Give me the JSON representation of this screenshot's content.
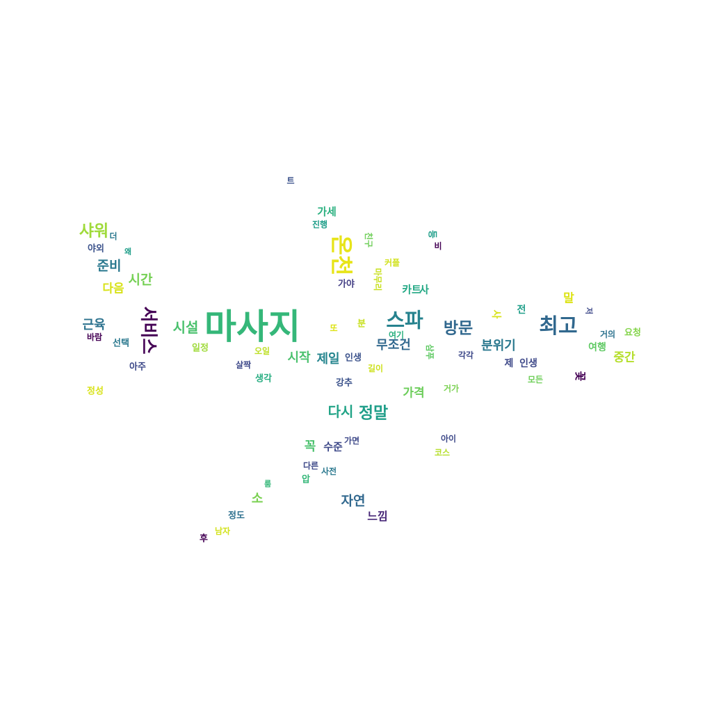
{
  "words": [
    {
      "text": "마사지",
      "color": "#35b779"
    },
    {
      "text": "최고",
      "color": "#31688e"
    },
    {
      "text": "스파",
      "color": "#26828e"
    },
    {
      "text": "방문",
      "color": "#31688e"
    },
    {
      "text": "온천",
      "color": "#e7e419"
    },
    {
      "text": "샤워",
      "color": "#9fda3a"
    },
    {
      "text": "정말",
      "color": "#1f9e89"
    },
    {
      "text": "다시",
      "color": "#20a386"
    },
    {
      "text": "시설",
      "color": "#4ac16d"
    },
    {
      "text": "준비",
      "color": "#2a788e"
    },
    {
      "text": "시간",
      "color": "#75d054"
    },
    {
      "text": "근육",
      "color": "#2c728e"
    },
    {
      "text": "분위기",
      "color": "#2a788e"
    },
    {
      "text": "무조건",
      "color": "#31688e"
    },
    {
      "text": "자연",
      "color": "#31688e"
    },
    {
      "text": "가격",
      "color": "#6ccd5a"
    },
    {
      "text": "시작",
      "color": "#4ac16d"
    },
    {
      "text": "제일",
      "color": "#25858e"
    },
    {
      "text": "중간",
      "color": "#b5de2b"
    },
    {
      "text": "다음",
      "color": "#d8e219"
    },
    {
      "text": "말",
      "color": "#dde318"
    },
    {
      "text": "소",
      "color": "#7ad151"
    },
    {
      "text": "꼭",
      "color": "#4ac16d"
    },
    {
      "text": "느낌",
      "color": "#482878"
    },
    {
      "text": "가세",
      "color": "#2ab07f"
    },
    {
      "text": "수준",
      "color": "#3e4989"
    },
    {
      "text": "카트",
      "color": "#22a884"
    },
    {
      "text": "사",
      "color": "#22a884"
    },
    {
      "text": "제",
      "color": "#3e4989"
    },
    {
      "text": "인생",
      "color": "#3e4989"
    },
    {
      "text": "여행",
      "color": "#5ec962"
    },
    {
      "text": "요청",
      "color": "#84d44b"
    },
    {
      "text": "생각",
      "color": "#27ad81"
    },
    {
      "text": "일정",
      "color": "#9fda3a"
    },
    {
      "text": "강추",
      "color": "#3b528b"
    },
    {
      "text": "정도",
      "color": "#2d708e"
    },
    {
      "text": "선택",
      "color": "#2a788e"
    },
    {
      "text": "아주",
      "color": "#3e4989"
    },
    {
      "text": "가야",
      "color": "#433e85"
    },
    {
      "text": "야외",
      "color": "#3b528b"
    },
    {
      "text": "전",
      "color": "#1f9e89"
    },
    {
      "text": "인생",
      "color": "#3b528b"
    },
    {
      "text": "정성",
      "color": "#d8e219"
    },
    {
      "text": "바람",
      "color": "#440154"
    },
    {
      "text": "거의",
      "color": "#2c728e"
    },
    {
      "text": "각각",
      "color": "#3e4989"
    },
    {
      "text": "모든",
      "color": "#6ece58"
    },
    {
      "text": "가면",
      "color": "#3e4989"
    },
    {
      "text": "아이",
      "color": "#3e4989"
    },
    {
      "text": "코스",
      "color": "#b5de2b"
    },
    {
      "text": "여기",
      "color": "#2ab07f"
    },
    {
      "text": "길이",
      "color": "#cde11d"
    },
    {
      "text": "오일",
      "color": "#bddf26"
    },
    {
      "text": "살짝",
      "color": "#3e4989"
    },
    {
      "text": "진행",
      "color": "#1f9e89"
    },
    {
      "text": "커플",
      "color": "#d0e11c"
    },
    {
      "text": "거가",
      "color": "#7ad151"
    },
    {
      "text": "다른",
      "color": "#3e4989"
    },
    {
      "text": "사전",
      "color": "#2a788e"
    },
    {
      "text": "압",
      "color": "#35b779"
    },
    {
      "text": "룸",
      "color": "#35b779"
    },
    {
      "text": "후",
      "color": "#440154"
    },
    {
      "text": "남자",
      "color": "#d2e21b"
    },
    {
      "text": "왜",
      "color": "#1f9e89"
    },
    {
      "text": "더",
      "color": "#2a788e"
    },
    {
      "text": "트",
      "color": "#3b528b"
    },
    {
      "text": "또",
      "color": "#dde318"
    },
    {
      "text": "분",
      "color": "#c8e020"
    },
    {
      "text": "비",
      "color": "#440154"
    },
    {
      "text": "서비스",
      "color": "#440154"
    },
    {
      "text": "친구",
      "color": "#6ece58"
    },
    {
      "text": "마무리",
      "color": "#c8e020"
    },
    {
      "text": "등",
      "color": "#1f9e89"
    },
    {
      "text": "사",
      "color": "#d8e219"
    },
    {
      "text": "저",
      "color": "#3e4989"
    },
    {
      "text": "삼푸",
      "color": "#5ec962"
    },
    {
      "text": "꽃",
      "color": "#440154"
    }
  ]
}
